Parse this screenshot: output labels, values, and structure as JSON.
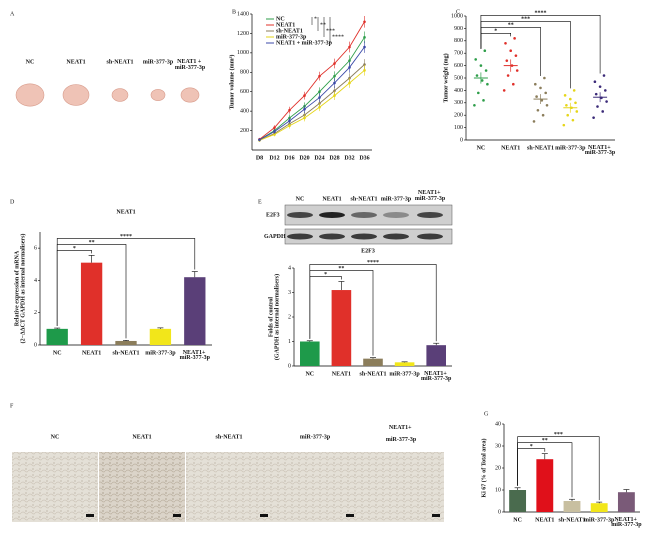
{
  "figure": {
    "A": {
      "panel": "A",
      "labels": [
        "NC",
        "NEAT1",
        "sh-NEAT1",
        "miR-377-3p",
        "NEAT1 + miR-377-3p"
      ]
    },
    "E_blot": {
      "labels": [
        "NC",
        "NEAT1",
        "sh-NEAT1",
        "miR-377-3p",
        "NEAT1+ miR-377-3p"
      ],
      "rows": [
        "E2F3",
        "GAPDH"
      ],
      "caption": "E2F3"
    },
    "F": {
      "panel": "F",
      "labels": [
        "NC",
        "NEAT1",
        "sh-NEAT1",
        "miR-377-3p",
        "NEAT1+ miR-377-3p"
      ]
    }
  },
  "chart_data": [
    {
      "panel": "B",
      "type": "line",
      "ylabel": [
        "Tumor volume (mm³)"
      ],
      "categories": [
        "D8",
        "D12",
        "D16",
        "D20",
        "D24",
        "D28",
        "D32",
        "D36"
      ],
      "ylim": [
        0,
        1400
      ],
      "yticks": [
        200,
        400,
        600,
        800,
        1000,
        1200,
        1400
      ],
      "series": [
        {
          "name": "NC",
          "color": "#2e9e4a",
          "values": [
            105,
            200,
            330,
            450,
            600,
            760,
            920,
            1160
          ],
          "errors": [
            15,
            25,
            35,
            40,
            45,
            50,
            55,
            60
          ]
        },
        {
          "name": "NEAT1",
          "color": "#e0302a",
          "values": [
            110,
            230,
            410,
            560,
            760,
            890,
            1060,
            1320
          ],
          "errors": [
            15,
            25,
            35,
            40,
            45,
            50,
            55,
            60
          ]
        },
        {
          "name": "sh-NEAT1",
          "color": "#8b7d5b",
          "values": [
            100,
            170,
            270,
            360,
            480,
            610,
            740,
            880
          ],
          "errors": [
            15,
            20,
            30,
            35,
            40,
            45,
            50,
            55
          ]
        },
        {
          "name": "miR-377-3p",
          "color": "#e6d619",
          "values": [
            100,
            160,
            250,
            330,
            440,
            560,
            690,
            820
          ],
          "errors": [
            15,
            20,
            30,
            35,
            40,
            45,
            50,
            55
          ]
        },
        {
          "name": "NEAT1 + miR-377-3p",
          "color": "#3b4aa8",
          "values": [
            105,
            190,
            300,
            420,
            540,
            690,
            850,
            1060
          ],
          "errors": [
            15,
            25,
            30,
            40,
            45,
            50,
            55,
            60
          ]
        }
      ],
      "significance": [
        "*",
        "**",
        "***",
        "****"
      ]
    },
    {
      "panel": "C",
      "type": "dot",
      "ylabel": [
        "Tumor weight (mg)"
      ],
      "categories": [
        "NC",
        "NEAT1",
        "sh-NEAT1",
        "miR-377-3p",
        "NEAT1+ miR-377-3p"
      ],
      "colors": [
        "#2e9e4a",
        "#e0302a",
        "#8b7d5b",
        "#e6d619",
        "#3b2a78"
      ],
      "ylim": [
        0,
        1000
      ],
      "yticks": [
        0,
        100,
        200,
        300,
        400,
        500,
        600,
        700,
        800,
        900,
        1000
      ],
      "values": [
        500,
        600,
        330,
        260,
        345
      ],
      "errors": [
        45,
        50,
        40,
        40,
        40
      ],
      "points": [
        [
          280,
          320,
          380,
          450,
          480,
          520,
          560,
          600,
          650,
          720
        ],
        [
          400,
          450,
          520,
          560,
          600,
          640,
          680,
          720,
          780,
          820
        ],
        [
          150,
          200,
          240,
          280,
          320,
          350,
          380,
          420,
          450,
          500
        ],
        [
          120,
          160,
          200,
          230,
          260,
          280,
          300,
          330,
          360,
          400
        ],
        [
          180,
          230,
          270,
          310,
          340,
          370,
          400,
          430,
          470,
          520
        ]
      ],
      "significance": [
        "*",
        "**",
        "***",
        "****"
      ]
    },
    {
      "panel": "D",
      "type": "bar",
      "title": "NEAT1",
      "ylabel": [
        "Relative expression of mRNA",
        "(2−ΔΔCT GAPDH as internal normalisers)"
      ],
      "categories": [
        "NC",
        "NEAT1",
        "sh-NEAT1",
        "miR-377-3p",
        "NEAT1+ miR-377-3p"
      ],
      "colors": [
        "#1e9a4a",
        "#e0302a",
        "#8b7d5b",
        "#f2e61a",
        "#5a3f78"
      ],
      "ylim": [
        0,
        7
      ],
      "yticks": [
        0,
        2,
        4,
        6
      ],
      "values": [
        1,
        5.1,
        0.25,
        1.0,
        4.2
      ],
      "errors": [
        0.05,
        0.45,
        0.04,
        0.06,
        0.35
      ],
      "significance": [
        "*",
        "**",
        "****"
      ]
    },
    {
      "panel": "E",
      "type": "bar",
      "ylabel": [
        "Folds of control",
        "(GAPDH as internal normalisers)"
      ],
      "categories": [
        "NC",
        "NEAT1",
        "sh-NEAT1",
        "miR-377-3p",
        "NEAT1+ miR-377-3p"
      ],
      "colors": [
        "#1e9a4a",
        "#e0302a",
        "#8b7d5b",
        "#f2e61a",
        "#5a3f78"
      ],
      "ylim": [
        0,
        4
      ],
      "yticks": [
        0,
        1,
        2,
        3,
        4
      ],
      "values": [
        1,
        3.1,
        0.3,
        0.15,
        0.85
      ],
      "errors": [
        0.03,
        0.35,
        0.04,
        0.02,
        0.08
      ],
      "significance": [
        "*",
        "**",
        "****"
      ]
    },
    {
      "panel": "G",
      "type": "bar",
      "ylabel": [
        "Ki 67 (% of Total area)"
      ],
      "categories": [
        "NC",
        "NEAT1",
        "sh-NEAT1",
        "miR-377-3p",
        "NEAT1+ miR-377-3p"
      ],
      "colors": [
        "#4a6b4e",
        "#e0101a",
        "#c8bfa0",
        "#f2e61a",
        "#7a5a78"
      ],
      "ylim": [
        0,
        40
      ],
      "yticks": [
        0,
        10,
        20,
        30,
        40
      ],
      "values": [
        10,
        24,
        5,
        4,
        9
      ],
      "errors": [
        1,
        2.5,
        0.8,
        0.5,
        1.2
      ],
      "significance": [
        "*",
        "**",
        "***"
      ]
    }
  ]
}
